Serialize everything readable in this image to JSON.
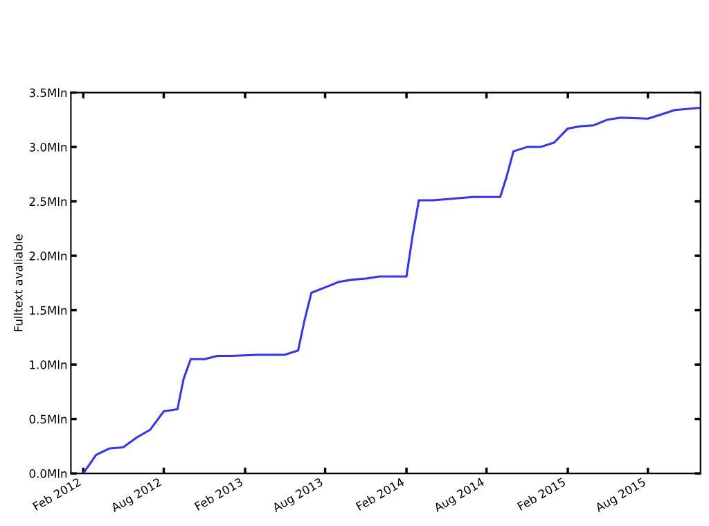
{
  "chart_data": {
    "type": "line",
    "ylabel": "Fulltext avaliable",
    "color": "#3333ff",
    "grid": false,
    "marker": "none",
    "line_style": "solid",
    "x": [
      "2012-02-01",
      "2012-03-01",
      "2012-04-01",
      "2012-05-01",
      "2012-06-01",
      "2012-07-01",
      "2012-08-01",
      "2012-09-01",
      "2012-09-15",
      "2012-10-01",
      "2012-11-01",
      "2012-12-01",
      "2013-01-01",
      "2013-03-01",
      "2013-05-01",
      "2013-06-01",
      "2013-06-15",
      "2013-07-01",
      "2013-08-01",
      "2013-09-01",
      "2013-10-01",
      "2013-11-01",
      "2013-12-01",
      "2014-01-01",
      "2014-02-01",
      "2014-02-15",
      "2014-03-01",
      "2014-04-01",
      "2014-05-01",
      "2014-07-01",
      "2014-09-01",
      "2014-09-15",
      "2014-10-01",
      "2014-11-01",
      "2014-12-01",
      "2015-01-01",
      "2015-02-01",
      "2015-03-01",
      "2015-04-01",
      "2015-05-01",
      "2015-06-01",
      "2015-08-01",
      "2015-09-01",
      "2015-10-01",
      "2015-11-28"
    ],
    "values": [
      0.0,
      0.17,
      0.23,
      0.24,
      0.33,
      0.4,
      0.57,
      0.59,
      0.87,
      1.05,
      1.05,
      1.08,
      1.08,
      1.09,
      1.09,
      1.13,
      1.4,
      1.66,
      1.71,
      1.76,
      1.78,
      1.79,
      1.81,
      1.81,
      1.81,
      2.19,
      2.51,
      2.51,
      2.52,
      2.54,
      2.54,
      2.72,
      2.96,
      3.0,
      3.0,
      3.04,
      3.17,
      3.19,
      3.2,
      3.25,
      3.27,
      3.26,
      3.3,
      3.34,
      3.36
    ],
    "xlim": [
      "2012-01-04",
      "2015-11-28"
    ],
    "xticks": [
      {
        "value": "2012-02-01",
        "label": "Feb 2012"
      },
      {
        "value": "2012-08-01",
        "label": "Aug 2012"
      },
      {
        "value": "2013-02-01",
        "label": "Feb 2013"
      },
      {
        "value": "2013-08-01",
        "label": "Aug 2013"
      },
      {
        "value": "2014-02-01",
        "label": "Feb 2014"
      },
      {
        "value": "2014-08-01",
        "label": "Aug 2014"
      },
      {
        "value": "2015-02-01",
        "label": "Feb 2015"
      },
      {
        "value": "2015-08-01",
        "label": "Aug 2015"
      }
    ],
    "ylim": [
      0,
      3.5
    ],
    "yticks": [
      {
        "value": 0,
        "label": "0.0Mln"
      },
      {
        "value": 0.5,
        "label": "0.5Mln"
      },
      {
        "value": 1.0,
        "label": "1.0Mln"
      },
      {
        "value": 1.5,
        "label": "1.5Mln"
      },
      {
        "value": 2.0,
        "label": "2.0Mln"
      },
      {
        "value": 2.5,
        "label": "2.5Mln"
      },
      {
        "value": 3.0,
        "label": "3.0Mln"
      },
      {
        "value": 3.5,
        "label": "3.5Mln"
      }
    ]
  }
}
